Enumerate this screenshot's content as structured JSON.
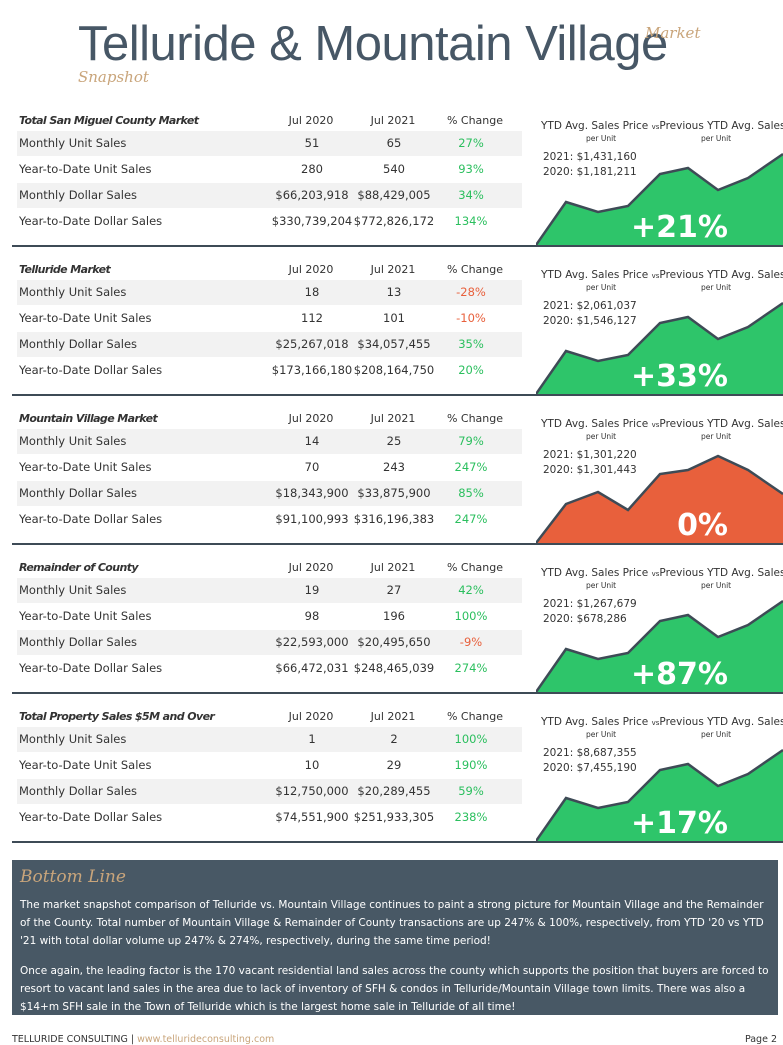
{
  "header": {
    "title": "Telluride & Mountain Village",
    "market": "Market",
    "snapshot": "Snapshot"
  },
  "columns": {
    "jul2020": "Jul 2020",
    "jul2021": "Jul 2021",
    "change": "% Change"
  },
  "ytd_labels": {
    "left": "YTD Avg. Sales Price",
    "vs": "vs",
    "right": "Previous YTD Avg. Sales Price",
    "per_unit": "per Unit"
  },
  "sections": [
    {
      "name": "Total San Miguel County Market",
      "rows": [
        {
          "label": "Monthly Unit Sales",
          "v2020": "51",
          "v2021": "65",
          "change": "27%",
          "dir": "pos"
        },
        {
          "label": "Year-to-Date Unit Sales",
          "v2020": "280",
          "v2021": "540",
          "change": "93%",
          "dir": "pos"
        },
        {
          "label": "Monthly Dollar Sales",
          "v2020": "$66,203,918",
          "v2021": "$88,429,005",
          "change": "34%",
          "dir": "pos"
        },
        {
          "label": "Year-to-Date Dollar Sales",
          "v2020": "$330,739,204",
          "v2021": "$772,826,172",
          "change": "134%",
          "dir": "pos"
        }
      ],
      "ytd_2021": "2021: $1,431,160",
      "ytd_2020": "2020: $1,181,211",
      "pct": "+21%",
      "chart_color": "#2ec56a"
    },
    {
      "name": "Telluride Market",
      "rows": [
        {
          "label": "Monthly Unit Sales",
          "v2020": "18",
          "v2021": "13",
          "change": "-28%",
          "dir": "neg"
        },
        {
          "label": "Year-to-Date Unit Sales",
          "v2020": "112",
          "v2021": "101",
          "change": "-10%",
          "dir": "neg"
        },
        {
          "label": "Monthly Dollar Sales",
          "v2020": "$25,267,018",
          "v2021": "$34,057,455",
          "change": "35%",
          "dir": "pos"
        },
        {
          "label": "Year-to-Date Dollar Sales",
          "v2020": "$173,166,180",
          "v2021": "$208,164,750",
          "change": "20%",
          "dir": "pos"
        }
      ],
      "ytd_2021": "2021: $2,061,037",
      "ytd_2020": "2020: $1,546,127",
      "pct": "+33%",
      "chart_color": "#2ec56a"
    },
    {
      "name": "Mountain Village Market",
      "rows": [
        {
          "label": "Monthly Unit Sales",
          "v2020": "14",
          "v2021": "25",
          "change": "79%",
          "dir": "pos"
        },
        {
          "label": "Year-to-Date Unit Sales",
          "v2020": "70",
          "v2021": "243",
          "change": "247%",
          "dir": "pos"
        },
        {
          "label": "Monthly Dollar Sales",
          "v2020": "$18,343,900",
          "v2021": "$33,875,900",
          "change": "85%",
          "dir": "pos"
        },
        {
          "label": "Year-to-Date Dollar Sales",
          "v2020": "$91,100,993",
          "v2021": "$316,196,383",
          "change": "247%",
          "dir": "pos"
        }
      ],
      "ytd_2021": "2021: $1,301,220",
      "ytd_2020": "2020: $1,301,443",
      "pct": "0%",
      "chart_color": "#e8603c"
    },
    {
      "name": "Remainder of County",
      "rows": [
        {
          "label": "Monthly Unit Sales",
          "v2020": "19",
          "v2021": "27",
          "change": "42%",
          "dir": "pos"
        },
        {
          "label": "Year-to-Date Unit Sales",
          "v2020": "98",
          "v2021": "196",
          "change": "100%",
          "dir": "pos"
        },
        {
          "label": "Monthly Dollar Sales",
          "v2020": "$22,593,000",
          "v2021": "$20,495,650",
          "change": "-9%",
          "dir": "neg"
        },
        {
          "label": "Year-to-Date Dollar Sales",
          "v2020": "$66,472,031",
          "v2021": "$248,465,039",
          "change": "274%",
          "dir": "pos"
        }
      ],
      "ytd_2021": "2021: $1,267,679",
      "ytd_2020": "2020: $678,286",
      "pct": "+87%",
      "chart_color": "#2ec56a"
    },
    {
      "name": "Total Property Sales $5M and Over",
      "rows": [
        {
          "label": "Monthly Unit Sales",
          "v2020": "1",
          "v2021": "2",
          "change": "100%",
          "dir": "pos"
        },
        {
          "label": "Year-to-Date Unit Sales",
          "v2020": "10",
          "v2021": "29",
          "change": "190%",
          "dir": "pos"
        },
        {
          "label": "Monthly Dollar Sales",
          "v2020": "$12,750,000",
          "v2021": "$20,289,455",
          "change": "59%",
          "dir": "pos"
        },
        {
          "label": "Year-to-Date Dollar Sales",
          "v2020": "$74,551,900",
          "v2021": "$251,933,305",
          "change": "238%",
          "dir": "pos"
        }
      ],
      "ytd_2021": "2021: $8,687,355",
      "ytd_2020": "2020: $7,455,190",
      "pct": "+17%",
      "chart_color": "#2ec56a"
    }
  ],
  "bottom_line": {
    "heading": "Bottom Line",
    "p1": "The market snapshot comparison of Telluride vs. Mountain Village continues to paint a strong picture for Mountain Village and the Remainder of the County.  Total number of Mountain Village & Remainder of County transactions are up 247% & 100%, respectively, from YTD '20 vs YTD '21 with total dollar volume up 247% & 274%, respectively, during the same time period!",
    "p2": "Once again, the leading factor is the 170 vacant residential land sales across the county which supports the position that buyers are forced to resort to vacant land sales in the area due to lack of inventory of SFH & condos in Telluride/Mountain Village town limits.  There was also a $14+m SFH sale in the Town of Telluride which is the largest home sale in Telluride of all time!"
  },
  "footer": {
    "company": "TELLURIDE CONSULTING | ",
    "url": "www.tellurideconsulting.com",
    "page": "Page 2"
  }
}
